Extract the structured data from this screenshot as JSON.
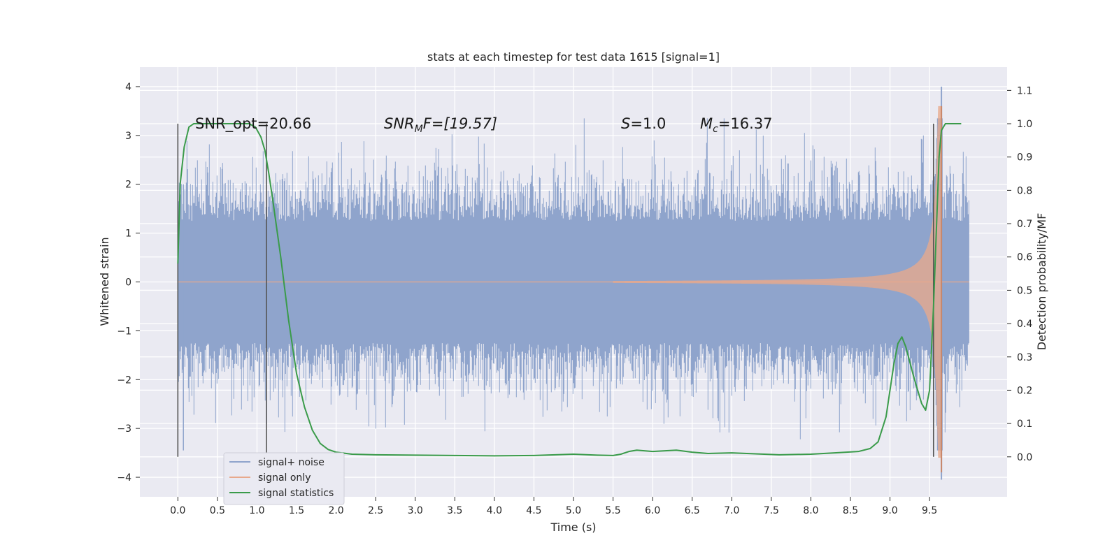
{
  "chart_data": {
    "type": "line",
    "title": "stats at each timestep for test data 1615 [signal=1]",
    "xlabel": "Time (s)",
    "ylabel": "Whitened strain",
    "ylabel_right": "Detection probability/MF",
    "xlim": [
      -0.48,
      10.48
    ],
    "ylim": [
      -4.4,
      4.4
    ],
    "ylim_right": [
      -0.12,
      1.17
    ],
    "x_ticks": [
      "0.0",
      "0.5",
      "1.0",
      "1.5",
      "2.0",
      "2.5",
      "3.0",
      "3.5",
      "4.0",
      "4.5",
      "5.0",
      "5.5",
      "6.0",
      "6.5",
      "7.0",
      "7.5",
      "8.0",
      "8.5",
      "9.0",
      "9.5"
    ],
    "x_tick_values": [
      0,
      0.5,
      1,
      1.5,
      2,
      2.5,
      3,
      3.5,
      4,
      4.5,
      5,
      5.5,
      6,
      6.5,
      7,
      7.5,
      8,
      8.5,
      9,
      9.5
    ],
    "y_ticks": [
      "4",
      "3",
      "2",
      "1",
      "0",
      "−1",
      "−2",
      "−3",
      "−4"
    ],
    "y_tick_values": [
      4,
      3,
      2,
      1,
      0,
      -1,
      -2,
      -3,
      -4
    ],
    "y_right_ticks": [
      "1.1",
      "1.0",
      "0.9",
      "0.8",
      "0.7",
      "0.6",
      "0.5",
      "0.4",
      "0.3",
      "0.2",
      "0.1",
      "0.0"
    ],
    "y_right_tick_values": [
      1.1,
      1.0,
      0.9,
      0.8,
      0.7,
      0.6,
      0.5,
      0.4,
      0.3,
      0.2,
      0.1,
      0.0
    ],
    "grid": true,
    "legend_position": "lower-left",
    "series": [
      {
        "name": "signal+ noise",
        "color": "#8fa4cc",
        "axis": "left",
        "x_range": [
          0,
          10
        ],
        "envelope_core": 1.25,
        "spike_max": 4.0,
        "spike_min": -4.05,
        "style": "dense noise"
      },
      {
        "name": "signal only",
        "color": "#e8a98c",
        "axis": "left",
        "chirp_start": 5.5,
        "merger_time": 9.65,
        "peak_amplitude": 3.6,
        "style": "chirp"
      },
      {
        "name": "signal statistics",
        "color": "#3a9b4a",
        "axis": "right",
        "x": [
          0.0,
          0.03,
          0.08,
          0.14,
          0.2,
          0.3,
          0.5,
          0.7,
          0.9,
          0.98,
          1.05,
          1.1,
          1.15,
          1.2,
          1.3,
          1.4,
          1.5,
          1.6,
          1.7,
          1.8,
          1.9,
          2.0,
          2.2,
          2.5,
          3.0,
          3.5,
          4.0,
          4.5,
          5.0,
          5.3,
          5.5,
          5.6,
          5.7,
          5.8,
          6.0,
          6.3,
          6.5,
          6.7,
          7.0,
          7.3,
          7.6,
          8.0,
          8.3,
          8.6,
          8.75,
          8.85,
          8.95,
          9.05,
          9.1,
          9.15,
          9.2,
          9.3,
          9.4,
          9.45,
          9.5,
          9.55,
          9.6,
          9.62,
          9.65,
          9.7,
          9.8,
          9.9
        ],
        "y": [
          0.58,
          0.82,
          0.93,
          0.99,
          1.0,
          1.0,
          1.0,
          1.0,
          1.0,
          0.99,
          0.96,
          0.92,
          0.85,
          0.77,
          0.6,
          0.41,
          0.25,
          0.15,
          0.08,
          0.04,
          0.022,
          0.014,
          0.008,
          0.006,
          0.005,
          0.004,
          0.003,
          0.004,
          0.008,
          0.005,
          0.004,
          0.008,
          0.016,
          0.02,
          0.016,
          0.02,
          0.014,
          0.01,
          0.012,
          0.009,
          0.006,
          0.008,
          0.012,
          0.016,
          0.025,
          0.045,
          0.12,
          0.28,
          0.34,
          0.36,
          0.33,
          0.24,
          0.16,
          0.14,
          0.2,
          0.45,
          0.77,
          0.9,
          0.98,
          1.0,
          1.0,
          1.0
        ]
      }
    ],
    "vertical_lines_x": [
      0.0,
      1.12,
      9.55
    ],
    "annotations": [
      {
        "id": "snr-opt",
        "text": "SNR_opt=20.66"
      },
      {
        "id": "snr-mf",
        "base": "SNR",
        "sub": "M",
        "tail": "F=[19.57]"
      },
      {
        "id": "s-value",
        "italic": "S",
        "tail": "=1.0"
      },
      {
        "id": "mc-value",
        "base": "M",
        "sub": "c",
        "tail": "=16.37"
      }
    ]
  }
}
